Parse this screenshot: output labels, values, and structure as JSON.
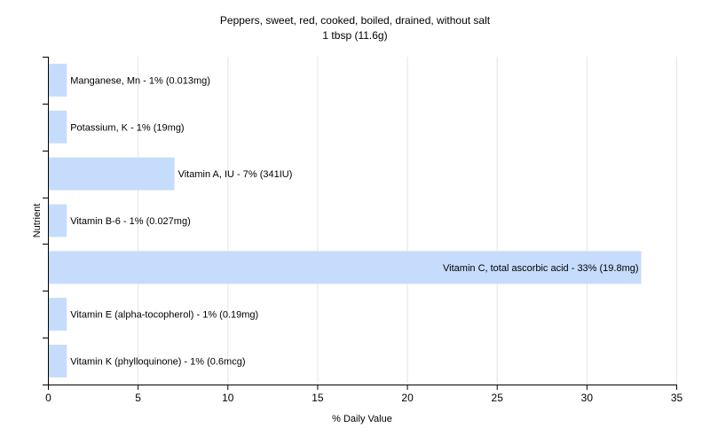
{
  "chart_data": {
    "type": "bar",
    "orientation": "horizontal",
    "title": "Peppers, sweet, red, cooked, boiled, drained, without salt",
    "subtitle": "1 tbsp (11.6g)",
    "xlabel": "% Daily Value",
    "ylabel": "Nutrient",
    "xlim": [
      0,
      35
    ],
    "xticks": [
      0,
      5,
      10,
      15,
      20,
      25,
      30,
      35
    ],
    "grid": "vertical",
    "legend": "none",
    "bar_color": "#c6dcfc",
    "categories": [
      "Manganese, Mn",
      "Potassium, K",
      "Vitamin A, IU",
      "Vitamin B-6",
      "Vitamin C, total ascorbic acid",
      "Vitamin E (alpha-tocopherol)",
      "Vitamin K (phylloquinone)"
    ],
    "values": [
      1,
      1,
      7,
      1,
      33,
      1,
      1
    ],
    "labels": [
      "Manganese, Mn - 1% (0.013mg)",
      "Potassium, K - 1% (19mg)",
      "Vitamin A, IU - 7% (341IU)",
      "Vitamin B-6 - 1% (0.027mg)",
      "Vitamin C, total ascorbic acid - 33% (19.8mg)",
      "Vitamin E (alpha-tocopherol) - 1% (0.19mg)",
      "Vitamin K (phylloquinone) - 1% (0.6mcg)"
    ]
  }
}
